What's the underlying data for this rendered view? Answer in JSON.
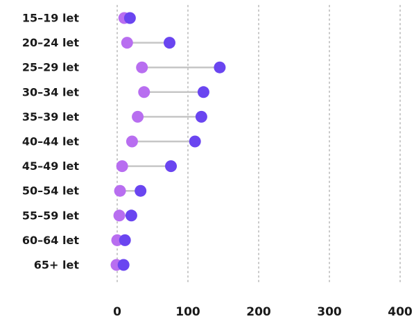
{
  "chart_data": {
    "type": "dumbbell",
    "title": "",
    "xlabel": "",
    "ylabel": "",
    "xlim": [
      0,
      400
    ],
    "x_ticks": [
      "0",
      "100",
      "200",
      "300",
      "400"
    ],
    "grid": true,
    "legend": "none",
    "colors": {
      "start": "#b86ef0",
      "end": "#6a45f0",
      "connector": "#c6c6c6",
      "grid": "#c8c8c8"
    },
    "categories": [
      "15–19 let",
      "20–24 let",
      "25–29 let",
      "30–34 let",
      "35–39 let",
      "40–44 let",
      "45–49 let",
      "50–54 let",
      "55–59 let",
      "60–64 let",
      "65+ let"
    ],
    "series": [
      {
        "values": [
          10,
          14,
          35,
          38,
          29,
          21,
          7,
          4,
          3,
          0,
          -1
        ]
      },
      {
        "values": [
          18,
          74,
          145,
          122,
          119,
          110,
          76,
          33,
          20,
          11,
          9
        ]
      }
    ]
  }
}
